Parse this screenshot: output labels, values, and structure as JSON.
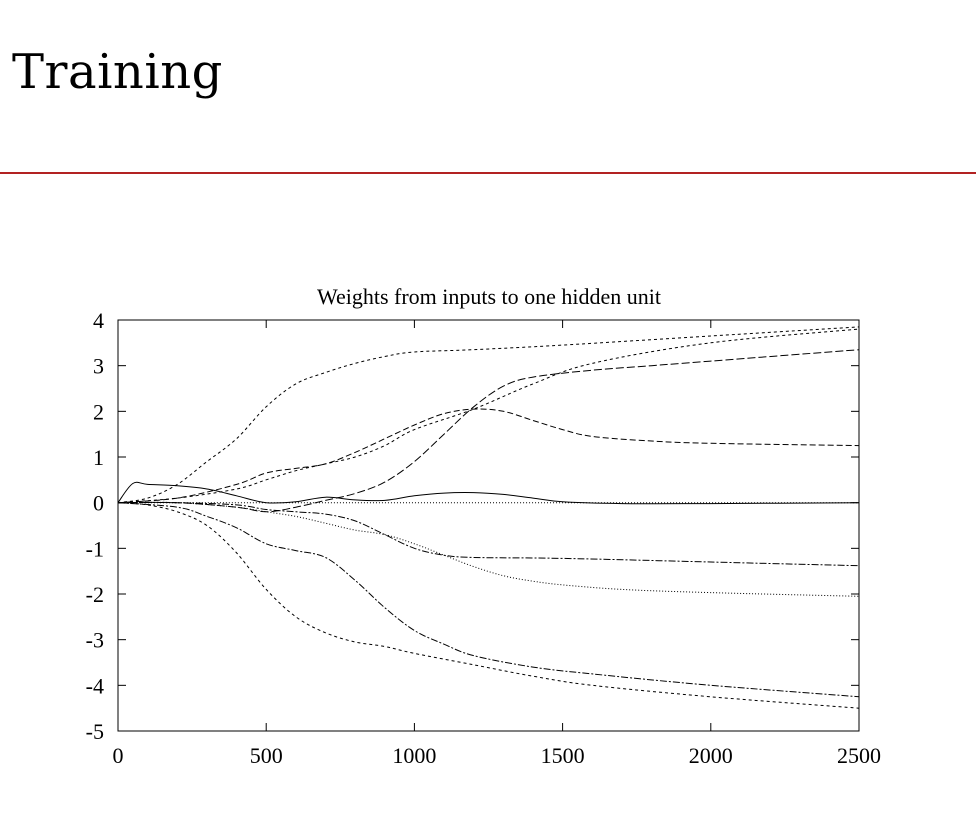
{
  "slide": {
    "title": "Training",
    "rule_color": "#b22222"
  },
  "chart_data": {
    "type": "line",
    "title": "Weights from inputs to one hidden unit",
    "xlabel": "",
    "ylabel": "",
    "xlim": [
      0,
      2500
    ],
    "ylim": [
      -5,
      4
    ],
    "xticks": [
      0,
      500,
      1000,
      1500,
      2000,
      2500
    ],
    "yticks": [
      -5,
      -4,
      -3,
      -2,
      -1,
      0,
      1,
      2,
      3,
      4
    ],
    "grid": false,
    "legend": "none",
    "series": [
      {
        "dash": "",
        "points": [
          [
            0,
            0
          ],
          [
            50,
            0.42
          ],
          [
            100,
            0.4
          ],
          [
            200,
            0.37
          ],
          [
            300,
            0.3
          ],
          [
            400,
            0.15
          ],
          [
            500,
            0.0
          ],
          [
            600,
            0.02
          ],
          [
            700,
            0.12
          ],
          [
            800,
            0.06
          ],
          [
            900,
            0.05
          ],
          [
            1000,
            0.15
          ],
          [
            1100,
            0.21
          ],
          [
            1200,
            0.22
          ],
          [
            1300,
            0.18
          ],
          [
            1400,
            0.1
          ],
          [
            1500,
            0.02
          ],
          [
            1700,
            -0.02
          ],
          [
            2000,
            -0.02
          ],
          [
            2500,
            0
          ]
        ]
      },
      {
        "dash": "1,2",
        "points": [
          [
            0,
            0
          ],
          [
            2500,
            0
          ]
        ]
      },
      {
        "dash": "3,3",
        "points": [
          [
            0,
            0
          ],
          [
            100,
            0.1
          ],
          [
            200,
            0.4
          ],
          [
            300,
            0.9
          ],
          [
            400,
            1.4
          ],
          [
            500,
            2.1
          ],
          [
            600,
            2.6
          ],
          [
            700,
            2.85
          ],
          [
            800,
            3.05
          ],
          [
            900,
            3.2
          ],
          [
            1000,
            3.3
          ],
          [
            1200,
            3.35
          ],
          [
            1500,
            3.45
          ],
          [
            2000,
            3.65
          ],
          [
            2500,
            3.85
          ]
        ]
      },
      {
        "dash": "3,3",
        "points": [
          [
            0,
            0
          ],
          [
            200,
            0.1
          ],
          [
            400,
            0.3
          ],
          [
            500,
            0.5
          ],
          [
            600,
            0.7
          ],
          [
            700,
            0.85
          ],
          [
            800,
            1.0
          ],
          [
            900,
            1.25
          ],
          [
            1000,
            1.6
          ],
          [
            1200,
            2.05
          ],
          [
            1400,
            2.6
          ],
          [
            1600,
            3.05
          ],
          [
            2000,
            3.5
          ],
          [
            2500,
            3.8
          ]
        ]
      },
      {
        "dash": "6,3",
        "points": [
          [
            0,
            0
          ],
          [
            200,
            0.1
          ],
          [
            400,
            0.4
          ],
          [
            500,
            0.65
          ],
          [
            600,
            0.75
          ],
          [
            700,
            0.85
          ],
          [
            800,
            1.1
          ],
          [
            900,
            1.4
          ],
          [
            1000,
            1.7
          ],
          [
            1100,
            1.95
          ],
          [
            1200,
            2.05
          ],
          [
            1300,
            2.0
          ],
          [
            1400,
            1.8
          ],
          [
            1500,
            1.6
          ],
          [
            1600,
            1.45
          ],
          [
            1800,
            1.35
          ],
          [
            2000,
            1.3
          ],
          [
            2500,
            1.25
          ]
        ]
      },
      {
        "dash": "8,3",
        "points": [
          [
            0,
            0
          ],
          [
            200,
            0
          ],
          [
            400,
            -0.1
          ],
          [
            500,
            -0.2
          ],
          [
            600,
            -0.1
          ],
          [
            700,
            0.05
          ],
          [
            800,
            0.2
          ],
          [
            900,
            0.45
          ],
          [
            1000,
            0.9
          ],
          [
            1100,
            1.5
          ],
          [
            1200,
            2.1
          ],
          [
            1300,
            2.55
          ],
          [
            1400,
            2.75
          ],
          [
            1600,
            2.9
          ],
          [
            1800,
            3.0
          ],
          [
            2000,
            3.1
          ],
          [
            2500,
            3.35
          ]
        ]
      },
      {
        "dash": "1,2",
        "points": [
          [
            0,
            0
          ],
          [
            200,
            0
          ],
          [
            400,
            -0.1
          ],
          [
            500,
            -0.2
          ],
          [
            600,
            -0.3
          ],
          [
            700,
            -0.45
          ],
          [
            800,
            -0.6
          ],
          [
            900,
            -0.7
          ],
          [
            1000,
            -0.9
          ],
          [
            1100,
            -1.15
          ],
          [
            1200,
            -1.4
          ],
          [
            1300,
            -1.6
          ],
          [
            1400,
            -1.72
          ],
          [
            1500,
            -1.8
          ],
          [
            1700,
            -1.9
          ],
          [
            2000,
            -1.97
          ],
          [
            2500,
            -2.05
          ]
        ]
      },
      {
        "dash": "7,2,2,2",
        "points": [
          [
            0,
            0
          ],
          [
            200,
            0
          ],
          [
            400,
            -0.05
          ],
          [
            500,
            -0.15
          ],
          [
            600,
            -0.2
          ],
          [
            700,
            -0.25
          ],
          [
            800,
            -0.4
          ],
          [
            900,
            -0.7
          ],
          [
            1000,
            -1.0
          ],
          [
            1100,
            -1.15
          ],
          [
            1200,
            -1.2
          ],
          [
            1500,
            -1.22
          ],
          [
            2000,
            -1.3
          ],
          [
            2500,
            -1.38
          ]
        ]
      },
      {
        "dash": "7,2,2,2",
        "points": [
          [
            0,
            0
          ],
          [
            200,
            -0.1
          ],
          [
            300,
            -0.3
          ],
          [
            400,
            -0.55
          ],
          [
            500,
            -0.9
          ],
          [
            600,
            -1.05
          ],
          [
            700,
            -1.2
          ],
          [
            800,
            -1.7
          ],
          [
            900,
            -2.3
          ],
          [
            1000,
            -2.8
          ],
          [
            1100,
            -3.1
          ],
          [
            1200,
            -3.35
          ],
          [
            1400,
            -3.6
          ],
          [
            1600,
            -3.75
          ],
          [
            2000,
            -4.0
          ],
          [
            2500,
            -4.25
          ]
        ]
      },
      {
        "dash": "3,3",
        "points": [
          [
            0,
            0
          ],
          [
            100,
            -0.05
          ],
          [
            200,
            -0.2
          ],
          [
            300,
            -0.5
          ],
          [
            400,
            -1.1
          ],
          [
            500,
            -1.9
          ],
          [
            600,
            -2.5
          ],
          [
            700,
            -2.85
          ],
          [
            800,
            -3.05
          ],
          [
            900,
            -3.15
          ],
          [
            1000,
            -3.3
          ],
          [
            1200,
            -3.55
          ],
          [
            1400,
            -3.8
          ],
          [
            1600,
            -4.0
          ],
          [
            2000,
            -4.25
          ],
          [
            2500,
            -4.5
          ]
        ]
      }
    ]
  }
}
